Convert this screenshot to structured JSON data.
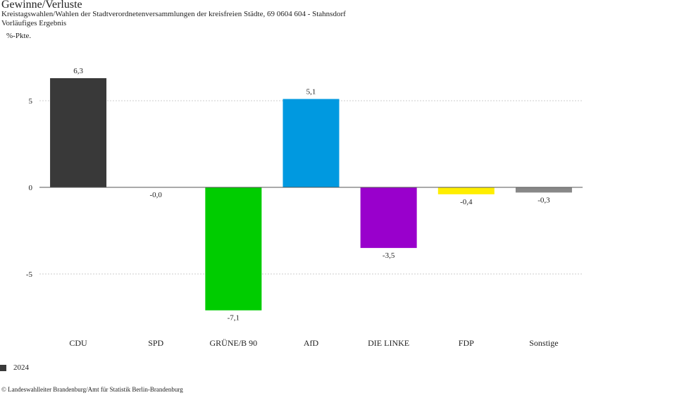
{
  "header": {
    "title": "Gewinne/Verluste",
    "subtitle": "Kreistagswahlen/Wahlen der Stadtverordnetenversammlungen der kreisfreien Städte, 69 0604 604 - Stahnsdorf",
    "subtitle2": "Vorläufiges Ergebnis",
    "unit": "%-Pkte."
  },
  "chart_data": {
    "type": "bar",
    "categories": [
      "CDU",
      "SPD",
      "GRÜNE/B 90",
      "AfD",
      "DIE LINKE",
      "FDP",
      "Sonstige"
    ],
    "values": [
      6.3,
      -0.0,
      -7.1,
      5.1,
      -3.5,
      -0.4,
      -0.3
    ],
    "value_labels": [
      "6,3",
      "-0,0",
      "-7,1",
      "5,1",
      "-3,5",
      "-0,4",
      "-0,3"
    ],
    "colors": [
      "#393939",
      "#e2001a",
      "#00cc00",
      "#0099e0",
      "#9900cc",
      "#ffee00",
      "#888888"
    ],
    "yticks": [
      5,
      0,
      -5
    ],
    "ytick_labels": [
      "5",
      "0",
      "-5"
    ],
    "ylim": [
      -8.2,
      7.3
    ],
    "grid": true,
    "legend": {
      "position": "bottom-left",
      "entries": [
        {
          "name": "2024",
          "color": "#393939"
        }
      ]
    }
  },
  "footer": {
    "credit": "© Landeswahlleiter Brandenburg/Amt für Statistik Berlin-Brandenburg"
  }
}
